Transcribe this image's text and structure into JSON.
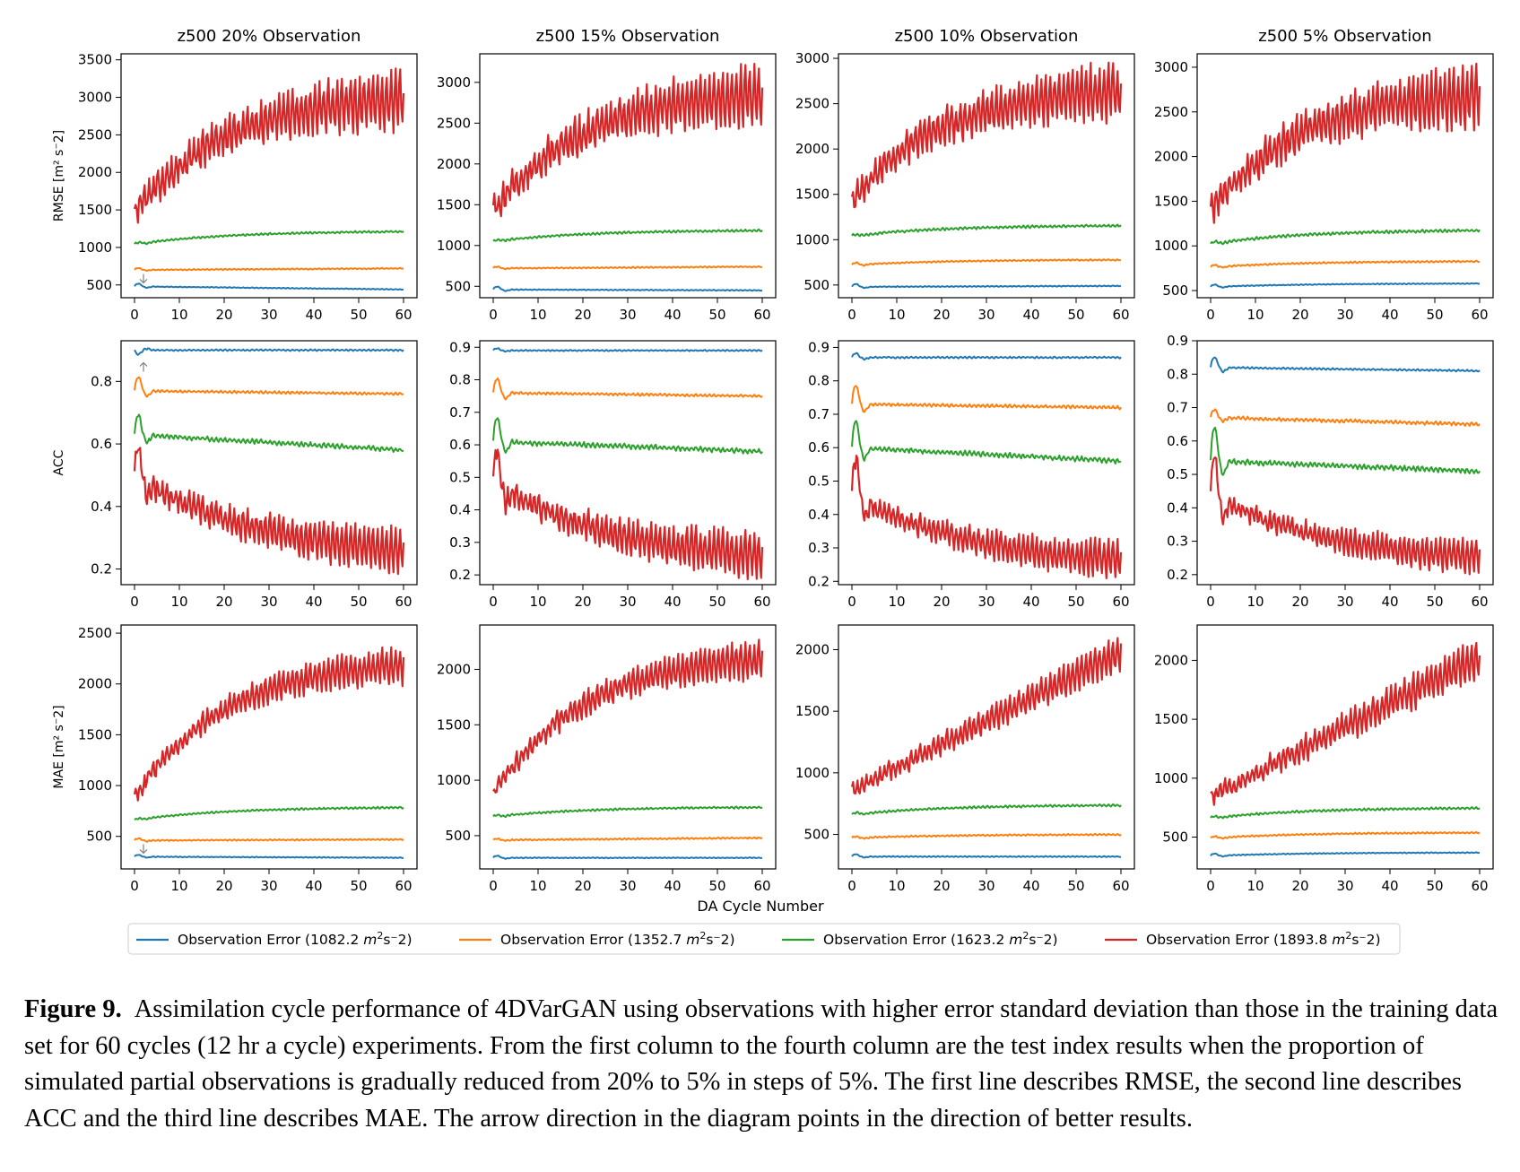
{
  "figure": {
    "label": "Figure 9.",
    "caption": "Assimilation cycle performance of 4DVarGAN using observations with higher error standard deviation than those in the training data set for 60 cycles (12 hr a cycle) experiments. From the first column to the fourth column are the test index results when the proportion of simulated partial observations is gradually reduced from 20% to 5% in steps of 5%. The first line describes RMSE, the second line describes ACC and the third line describes MAE. The arrow direction in the diagram points in the direction of better results."
  },
  "colors": {
    "blue": "#1f77b4",
    "orange": "#ff7f0e",
    "green": "#2ca02c",
    "red": "#d62728",
    "arrow": "#808080"
  },
  "chart_data": {
    "type": "line",
    "grid": false,
    "shared_xlabel": "DA Cycle Number",
    "legend_position": "bottom-center",
    "x": {
      "start": 0,
      "end": 60,
      "ticks": [
        0,
        10,
        20,
        30,
        40,
        50,
        60
      ]
    },
    "columns": [
      "z500 20% Observation",
      "z500 15% Observation",
      "z500 10% Observation",
      "z500 5% Observation"
    ],
    "rows": [
      {
        "metric": "RMSE",
        "ylabel": "RMSE [m² s⁻2]",
        "better": "down"
      },
      {
        "metric": "ACC",
        "ylabel": "ACC",
        "better": "up"
      },
      {
        "metric": "MAE",
        "ylabel": "MAE [m² s⁻2]",
        "better": "down"
      }
    ],
    "legend": [
      {
        "prefix": "Observation Error (1082.2 ",
        "unit": "m",
        "suffix": "s⁻2)",
        "color": "#1f77b4"
      },
      {
        "prefix": "Observation Error (1352.7 ",
        "unit": "m",
        "suffix": "s⁻2)",
        "color": "#ff7f0e"
      },
      {
        "prefix": "Observation Error (1623.2 ",
        "unit": "m",
        "suffix": "s⁻2)",
        "color": "#2ca02c"
      },
      {
        "prefix": "Observation Error (1893.8 ",
        "unit": "m",
        "suffix": "s⁻2)",
        "color": "#d62728"
      }
    ],
    "panels": [
      {
        "row": 0,
        "col": 0,
        "title": "z500 20% Observation",
        "ylim": [
          330,
          3580
        ],
        "yticks": [
          500,
          1000,
          1500,
          2000,
          2500,
          3000,
          3500
        ],
        "arrow": true,
        "series": [
          {
            "name": "Observation Error (1082.2 m²s⁻2)",
            "start": 480,
            "end": 440,
            "curve": "flat",
            "osc": 8,
            "transient": 60
          },
          {
            "name": "Observation Error (1352.7 m²s⁻2)",
            "start": 700,
            "end": 720,
            "curve": "flat",
            "osc": 12,
            "transient": 40
          },
          {
            "name": "Observation Error (1623.2 m²s⁻2)",
            "start": 1040,
            "end": 1220,
            "curve": "saturate",
            "osc": 20,
            "transient": 30
          },
          {
            "name": "Observation Error (1893.8 m²s⁻2)",
            "start": 1450,
            "end": 3050,
            "curve": "saturate",
            "osc": 380,
            "transient": 0
          }
        ]
      },
      {
        "row": 0,
        "col": 1,
        "title": "z500 15% Observation",
        "ylim": [
          360,
          3350
        ],
        "yticks": [
          500,
          1000,
          1500,
          2000,
          2500,
          3000
        ],
        "arrow": false,
        "series": [
          {
            "name": "Observation Error (1082.2 m²s⁻2)",
            "start": 460,
            "end": 450,
            "curve": "flat",
            "osc": 8,
            "transient": 60
          },
          {
            "name": "Observation Error (1352.7 m²s⁻2)",
            "start": 720,
            "end": 740,
            "curve": "flat",
            "osc": 12,
            "transient": 30
          },
          {
            "name": "Observation Error (1623.2 m²s⁻2)",
            "start": 1050,
            "end": 1190,
            "curve": "saturate",
            "osc": 20,
            "transient": 20
          },
          {
            "name": "Observation Error (1893.8 m²s⁻2)",
            "start": 1430,
            "end": 2920,
            "curve": "saturate",
            "osc": 360,
            "transient": 0
          }
        ]
      },
      {
        "row": 0,
        "col": 2,
        "title": "z500 10% Observation",
        "ylim": [
          360,
          3050
        ],
        "yticks": [
          500,
          1000,
          1500,
          2000,
          2500,
          3000
        ],
        "arrow": false,
        "series": [
          {
            "name": "Observation Error (1082.2 m²s⁻2)",
            "start": 480,
            "end": 490,
            "curve": "flat",
            "osc": 8,
            "transient": 50
          },
          {
            "name": "Observation Error (1352.7 m²s⁻2)",
            "start": 720,
            "end": 780,
            "curve": "saturate",
            "osc": 12,
            "transient": 40
          },
          {
            "name": "Observation Error (1623.2 m²s⁻2)",
            "start": 1040,
            "end": 1160,
            "curve": "saturate",
            "osc": 22,
            "transient": 20
          },
          {
            "name": "Observation Error (1893.8 m²s⁻2)",
            "start": 1420,
            "end": 2700,
            "curve": "saturate",
            "osc": 300,
            "transient": 0
          }
        ]
      },
      {
        "row": 0,
        "col": 3,
        "title": "z500 5% Observation",
        "ylim": [
          420,
          3150
        ],
        "yticks": [
          500,
          1000,
          1500,
          2000,
          2500,
          3000
        ],
        "arrow": false,
        "series": [
          {
            "name": "Observation Error (1082.2 m²s⁻2)",
            "start": 540,
            "end": 580,
            "curve": "saturate",
            "osc": 8,
            "transient": 40
          },
          {
            "name": "Observation Error (1352.7 m²s⁻2)",
            "start": 760,
            "end": 830,
            "curve": "saturate",
            "osc": 14,
            "transient": 40
          },
          {
            "name": "Observation Error (1623.2 m²s⁻2)",
            "start": 1020,
            "end": 1180,
            "curve": "saturate",
            "osc": 24,
            "transient": 30
          },
          {
            "name": "Observation Error (1893.8 m²s⁻2)",
            "start": 1380,
            "end": 2750,
            "curve": "saturate",
            "osc": 330,
            "transient": 0
          }
        ]
      },
      {
        "row": 1,
        "col": 0,
        "title": "",
        "ylim": [
          0.15,
          0.93
        ],
        "yticks": [
          0.2,
          0.4,
          0.6,
          0.8
        ],
        "arrow": true,
        "series": [
          {
            "name": "Observation Error (1082.2 m²s⁻2)",
            "start": 0.9,
            "end": 0.9,
            "curve": "flat",
            "osc": 0.004,
            "transient": -0.02
          },
          {
            "name": "Observation Error (1352.7 m²s⁻2)",
            "start": 0.77,
            "end": 0.76,
            "curve": "flat",
            "osc": 0.006,
            "transient": 0.07
          },
          {
            "name": "Observation Error (1623.2 m²s⁻2)",
            "start": 0.63,
            "end": 0.58,
            "curve": "flat",
            "osc": 0.012,
            "transient": 0.1
          },
          {
            "name": "Observation Error (1893.8 m²s⁻2)",
            "start": 0.5,
            "end": 0.23,
            "curve": "decay",
            "osc": 0.07,
            "transient": 0.16
          }
        ]
      },
      {
        "row": 1,
        "col": 1,
        "title": "",
        "ylim": [
          0.17,
          0.92
        ],
        "yticks": [
          0.2,
          0.3,
          0.4,
          0.5,
          0.6,
          0.7,
          0.8,
          0.9
        ],
        "arrow": false,
        "series": [
          {
            "name": "Observation Error (1082.2 m²s⁻2)",
            "start": 0.89,
            "end": 0.89,
            "curve": "flat",
            "osc": 0.003,
            "transient": 0.01
          },
          {
            "name": "Observation Error (1352.7 m²s⁻2)",
            "start": 0.76,
            "end": 0.75,
            "curve": "flat",
            "osc": 0.006,
            "transient": 0.07
          },
          {
            "name": "Observation Error (1623.2 m²s⁻2)",
            "start": 0.61,
            "end": 0.58,
            "curve": "flat",
            "osc": 0.012,
            "transient": 0.12
          },
          {
            "name": "Observation Error (1893.8 m²s⁻2)",
            "start": 0.49,
            "end": 0.23,
            "curve": "decay",
            "osc": 0.07,
            "transient": 0.16
          }
        ]
      },
      {
        "row": 1,
        "col": 2,
        "title": "",
        "ylim": [
          0.19,
          0.92
        ],
        "yticks": [
          0.2,
          0.3,
          0.4,
          0.5,
          0.6,
          0.7,
          0.8,
          0.9
        ],
        "arrow": false,
        "series": [
          {
            "name": "Observation Error (1082.2 m²s⁻2)",
            "start": 0.87,
            "end": 0.87,
            "curve": "flat",
            "osc": 0.004,
            "transient": 0.02
          },
          {
            "name": "Observation Error (1352.7 m²s⁻2)",
            "start": 0.73,
            "end": 0.72,
            "curve": "flat",
            "osc": 0.007,
            "transient": 0.09
          },
          {
            "name": "Observation Error (1623.2 m²s⁻2)",
            "start": 0.6,
            "end": 0.56,
            "curve": "flat",
            "osc": 0.012,
            "transient": 0.13
          },
          {
            "name": "Observation Error (1893.8 m²s⁻2)",
            "start": 0.46,
            "end": 0.24,
            "curve": "decay",
            "osc": 0.055,
            "transient": 0.18
          }
        ]
      },
      {
        "row": 1,
        "col": 3,
        "title": "",
        "ylim": [
          0.17,
          0.9
        ],
        "yticks": [
          0.2,
          0.3,
          0.4,
          0.5,
          0.6,
          0.7,
          0.8,
          0.9
        ],
        "arrow": false,
        "series": [
          {
            "name": "Observation Error (1082.2 m²s⁻2)",
            "start": 0.82,
            "end": 0.81,
            "curve": "flat",
            "osc": 0.004,
            "transient": 0.05
          },
          {
            "name": "Observation Error (1352.7 m²s⁻2)",
            "start": 0.67,
            "end": 0.65,
            "curve": "flat",
            "osc": 0.008,
            "transient": 0.04
          },
          {
            "name": "Observation Error (1623.2 m²s⁻2)",
            "start": 0.54,
            "end": 0.51,
            "curve": "flat",
            "osc": 0.012,
            "transient": 0.16
          },
          {
            "name": "Observation Error (1893.8 m²s⁻2)",
            "start": 0.44,
            "end": 0.23,
            "curve": "decay",
            "osc": 0.05,
            "transient": 0.2
          }
        ]
      },
      {
        "row": 2,
        "col": 0,
        "title": "",
        "ylim": [
          180,
          2580
        ],
        "yticks": [
          500,
          1000,
          1500,
          2000,
          2500
        ],
        "arrow": true,
        "series": [
          {
            "name": "Observation Error (1082.2 m²s⁻2)",
            "start": 300,
            "end": 290,
            "curve": "flat",
            "osc": 6,
            "transient": 30
          },
          {
            "name": "Observation Error (1352.7 m²s⁻2)",
            "start": 460,
            "end": 470,
            "curve": "flat",
            "osc": 10,
            "transient": 30
          },
          {
            "name": "Observation Error (1623.2 m²s⁻2)",
            "start": 660,
            "end": 790,
            "curve": "saturate",
            "osc": 14,
            "transient": 20
          },
          {
            "name": "Observation Error (1893.8 m²s⁻2)",
            "start": 880,
            "end": 2250,
            "curve": "saturate",
            "osc": 170,
            "transient": 0
          }
        ]
      },
      {
        "row": 2,
        "col": 1,
        "title": "",
        "ylim": [
          200,
          2400
        ],
        "yticks": [
          500,
          1000,
          1500,
          2000
        ],
        "arrow": false,
        "series": [
          {
            "name": "Observation Error (1082.2 m²s⁻2)",
            "start": 300,
            "end": 300,
            "curve": "flat",
            "osc": 6,
            "transient": 30
          },
          {
            "name": "Observation Error (1352.7 m²s⁻2)",
            "start": 460,
            "end": 480,
            "curve": "flat",
            "osc": 10,
            "transient": 20
          },
          {
            "name": "Observation Error (1623.2 m²s⁻2)",
            "start": 670,
            "end": 760,
            "curve": "saturate",
            "osc": 14,
            "transient": 20
          },
          {
            "name": "Observation Error (1893.8 m²s⁻2)",
            "start": 870,
            "end": 2150,
            "curve": "saturate",
            "osc": 160,
            "transient": 0
          }
        ]
      },
      {
        "row": 2,
        "col": 2,
        "title": "",
        "ylim": [
          220,
          2200
        ],
        "yticks": [
          500,
          1000,
          1500,
          2000
        ],
        "arrow": false,
        "series": [
          {
            "name": "Observation Error (1082.2 m²s⁻2)",
            "start": 320,
            "end": 320,
            "curve": "flat",
            "osc": 6,
            "transient": 30
          },
          {
            "name": "Observation Error (1352.7 m²s⁻2)",
            "start": 470,
            "end": 500,
            "curve": "saturate",
            "osc": 10,
            "transient": 20
          },
          {
            "name": "Observation Error (1623.2 m²s⁻2)",
            "start": 660,
            "end": 740,
            "curve": "saturate",
            "osc": 14,
            "transient": 20
          },
          {
            "name": "Observation Error (1893.8 m²s⁻2)",
            "start": 860,
            "end": 1980,
            "curve": "linear",
            "osc": 130,
            "transient": 0
          }
        ]
      },
      {
        "row": 2,
        "col": 3,
        "title": "",
        "ylim": [
          230,
          2300
        ],
        "yticks": [
          500,
          1000,
          1500,
          2000
        ],
        "arrow": false,
        "series": [
          {
            "name": "Observation Error (1082.2 m²s⁻2)",
            "start": 340,
            "end": 370,
            "curve": "saturate",
            "osc": 6,
            "transient": 30
          },
          {
            "name": "Observation Error (1352.7 m²s⁻2)",
            "start": 490,
            "end": 540,
            "curve": "saturate",
            "osc": 10,
            "transient": 20
          },
          {
            "name": "Observation Error (1623.2 m²s⁻2)",
            "start": 660,
            "end": 750,
            "curve": "saturate",
            "osc": 14,
            "transient": 20
          },
          {
            "name": "Observation Error (1893.8 m²s⁻2)",
            "start": 840,
            "end": 2030,
            "curve": "linear",
            "osc": 160,
            "transient": 0
          }
        ]
      }
    ]
  }
}
